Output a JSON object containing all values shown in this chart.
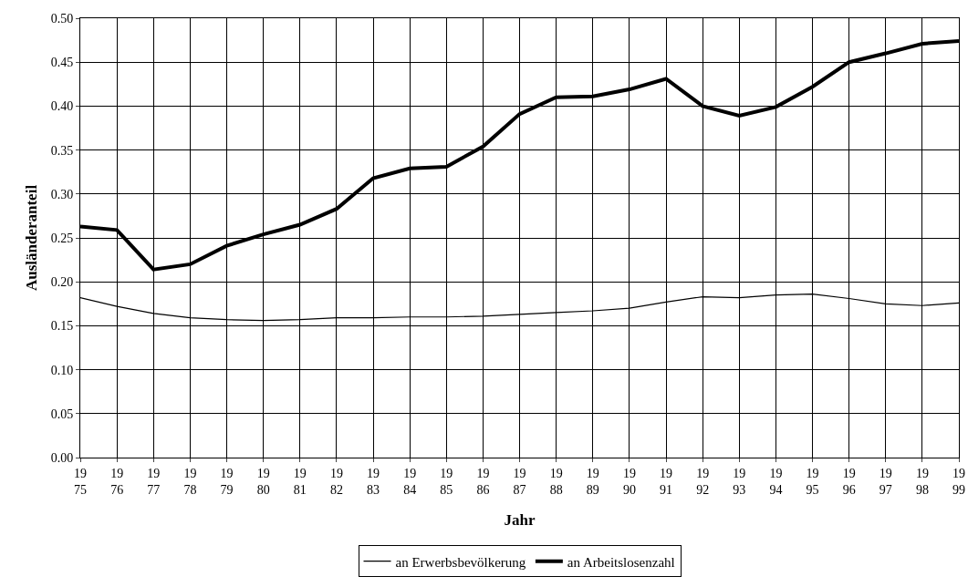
{
  "chart_data": {
    "type": "line",
    "xlabel": "Jahr",
    "ylabel": "Ausländeranteil",
    "categories": [
      "19\n75",
      "19\n76",
      "19\n77",
      "19\n78",
      "19\n79",
      "19\n80",
      "19\n81",
      "19\n82",
      "19\n83",
      "19\n84",
      "19\n85",
      "19\n86",
      "19\n87",
      "19\n88",
      "19\n89",
      "19\n90",
      "19\n91",
      "19\n92",
      "19\n93",
      "19\n94",
      "19\n95",
      "19\n96",
      "19\n97",
      "19\n98",
      "19\n99"
    ],
    "series": [
      {
        "name": "an Erwerbsbevölkerung",
        "color": "#000000",
        "values": [
          0.182,
          0.172,
          0.164,
          0.159,
          0.157,
          0.156,
          0.157,
          0.159,
          0.159,
          0.16,
          0.16,
          0.161,
          0.163,
          0.165,
          0.167,
          0.17,
          0.177,
          0.183,
          0.182,
          0.185,
          0.186,
          0.181,
          0.175,
          0.173,
          0.176
        ]
      },
      {
        "name": "an Arbeitslosenzahl",
        "color": "#000000",
        "values": [
          0.263,
          0.259,
          0.214,
          0.22,
          0.241,
          0.254,
          0.265,
          0.283,
          0.318,
          0.329,
          0.331,
          0.354,
          0.391,
          0.41,
          0.411,
          0.419,
          0.431,
          0.4,
          0.389,
          0.399,
          0.422,
          0.45,
          0.46,
          0.471,
          0.474
        ]
      }
    ],
    "ylim": [
      0,
      0.5
    ],
    "yticks": [
      {
        "value": 0,
        "label": "0.00"
      },
      {
        "value": 0.05,
        "label": "0.05"
      },
      {
        "value": 0.1,
        "label": "0.10"
      },
      {
        "value": 0.15,
        "label": "0.15"
      },
      {
        "value": 0.2,
        "label": "0.20"
      },
      {
        "value": 0.25,
        "label": "0.25"
      },
      {
        "value": 0.3,
        "label": "0.30"
      },
      {
        "value": 0.35,
        "label": "0.35"
      },
      {
        "value": 0.4,
        "label": "0.40"
      },
      {
        "value": 0.45,
        "label": "0.45"
      },
      {
        "value": 0.5,
        "label": "0.50"
      }
    ],
    "grid": true,
    "legend": "bottom",
    "marker": "none",
    "line_style": "solid"
  }
}
